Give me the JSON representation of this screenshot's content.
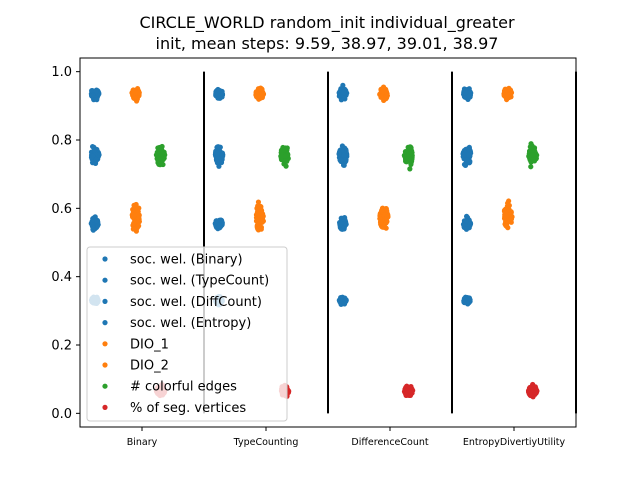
{
  "chart_data": {
    "type": "scatter",
    "title_line1": "CIRCLE_WORLD random_init individual_greater",
    "title_line2": "init, mean steps: 9.59, 38.97, 39.01, 38.97",
    "categories": [
      "Binary",
      "TypeCounting",
      "DifferenceCount",
      "EntropyDivertiyUtility"
    ],
    "ylim": [
      -0.04,
      1.04
    ],
    "yticks": [
      "0.0",
      "0.2",
      "0.4",
      "0.6",
      "0.8",
      "1.0"
    ],
    "legend_position": "lower left",
    "legend": [
      {
        "label": "soc. wel. (Binary)",
        "color": "#1f77b4"
      },
      {
        "label": "soc. wel. (TypeCount)",
        "color": "#1f77b4"
      },
      {
        "label": "soc. wel. (DiffCount)",
        "color": "#1f77b4"
      },
      {
        "label": "soc. wel. (Entropy)",
        "color": "#1f77b4"
      },
      {
        "label": "DIO_1",
        "color": "#ff7f0e"
      },
      {
        "label": "DIO_2",
        "color": "#ff7f0e"
      },
      {
        "label": "# colorful edges",
        "color": "#2ca02c"
      },
      {
        "label": "% of seg. vertices",
        "color": "#d62728"
      }
    ],
    "series": [
      {
        "color": "#1f77b4",
        "offset": -0.38,
        "values": [
          0.935,
          0.935,
          0.935
        ],
        "spread": 0.03,
        "width": 0.035
      },
      {
        "color": "#ff7f0e",
        "offset": -0.05,
        "values": [
          0.935,
          0.935,
          0.935
        ],
        "spread": 0.03,
        "width": 0.035
      },
      {
        "color": "#1f77b4",
        "offset": -0.38,
        "values": [
          0.755,
          0.755,
          0.755
        ],
        "spread": 0.05,
        "width": 0.035
      },
      {
        "color": "#2ca02c",
        "offset": 0.15,
        "values": [
          0.755,
          0.755,
          0.755
        ],
        "spread": 0.05,
        "width": 0.035
      },
      {
        "color": "#1f77b4",
        "offset": -0.38,
        "values": [
          0.555,
          0.555,
          0.555
        ],
        "spread": 0.03,
        "width": 0.03
      },
      {
        "color": "#ff7f0e",
        "offset": -0.05,
        "values": [
          0.575,
          0.575,
          0.575
        ],
        "spread": 0.07,
        "width": 0.035
      },
      {
        "color": "#1f77b4",
        "offset": -0.38,
        "values": [
          0.33,
          0.33,
          0.33
        ],
        "spread": 0.02,
        "width": 0.03
      },
      {
        "color": "#d62728",
        "offset": 0.15,
        "values": [
          0.065,
          0.065,
          0.065
        ],
        "spread": 0.03,
        "width": 0.035
      }
    ]
  }
}
